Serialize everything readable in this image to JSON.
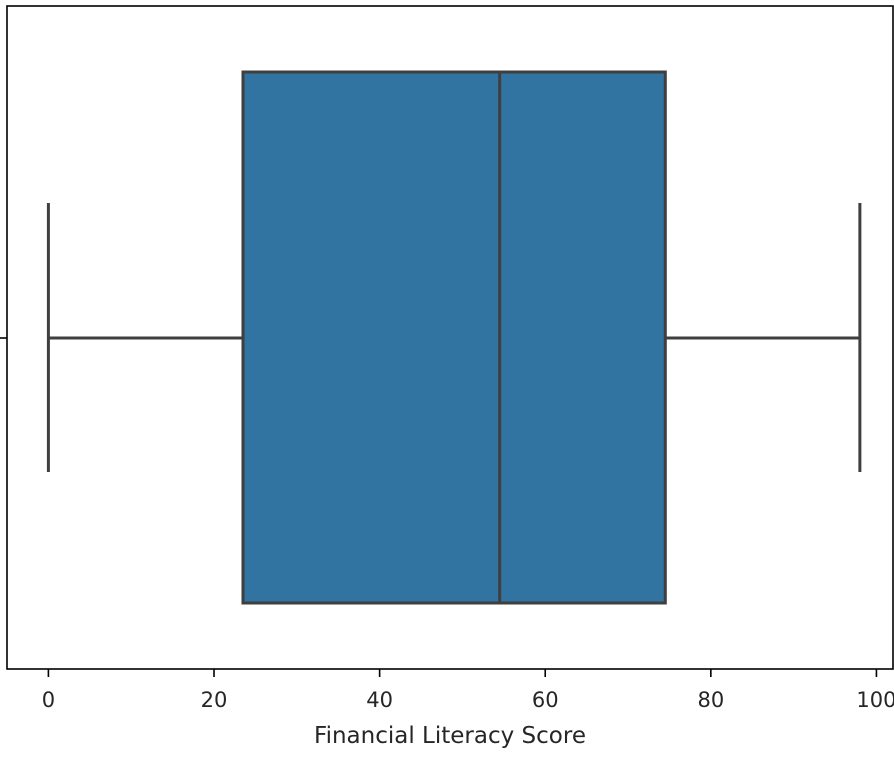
{
  "chart_data": {
    "type": "box",
    "orientation": "horizontal",
    "title": "",
    "xlabel": "Financial Literacy Score",
    "ylabel": "",
    "xlim": [
      -5,
      102
    ],
    "x_ticks": [
      0,
      20,
      40,
      60,
      80,
      100
    ],
    "x_tick_labels": [
      "0",
      "20",
      "40",
      "60",
      "80",
      "100"
    ],
    "grid": false,
    "legend": "none",
    "series": [
      {
        "min": 0,
        "q1": 23.5,
        "median": 54.5,
        "q3": 74.5,
        "max": 98,
        "color": "#3274a1",
        "edge_color": "#3f3f3f"
      }
    ]
  }
}
